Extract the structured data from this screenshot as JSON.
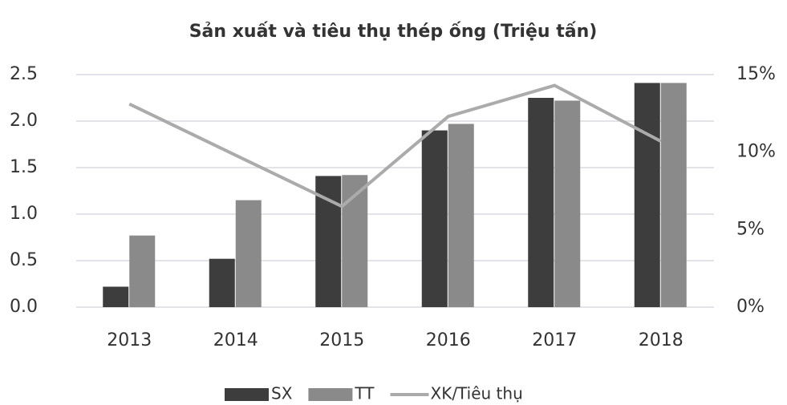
{
  "chart_data": {
    "type": "bar_line",
    "title": "Sản xuất và tiêu thụ thép ống (Triệu tấn)",
    "categories": [
      "2013",
      "2014",
      "2015",
      "2016",
      "2017",
      "2018"
    ],
    "series": [
      {
        "name": "SX",
        "color": "#3d3d3d",
        "type": "bar",
        "values": [
          0.22,
          0.52,
          1.41,
          1.9,
          2.25,
          2.41
        ]
      },
      {
        "name": "TT",
        "color": "#8a8a8a",
        "type": "bar",
        "values": [
          0.77,
          1.15,
          1.42,
          1.97,
          2.22,
          2.41
        ]
      },
      {
        "name": "XK/Tiêu thụ",
        "color": "#ababab",
        "type": "line",
        "axis": "y2",
        "values": [
          13.1,
          9.8,
          6.5,
          12.3,
          14.3,
          10.7
        ]
      }
    ],
    "ylim": [
      0,
      2.5
    ],
    "yticks": [
      {
        "value": 0,
        "label": "0.0"
      },
      0.5,
      {
        "value": 1,
        "label": "1.0"
      },
      1.5,
      {
        "value": 2,
        "label": "2.0"
      },
      2.5
    ],
    "y2lim": [
      0,
      15
    ],
    "y2ticks": [
      {
        "value": 0,
        "label": "0%"
      },
      {
        "value": 5,
        "label": "5%"
      },
      {
        "value": 10,
        "label": "10%"
      },
      {
        "value": 15,
        "label": "15%"
      }
    ],
    "grid": true,
    "legend": "bottom"
  }
}
